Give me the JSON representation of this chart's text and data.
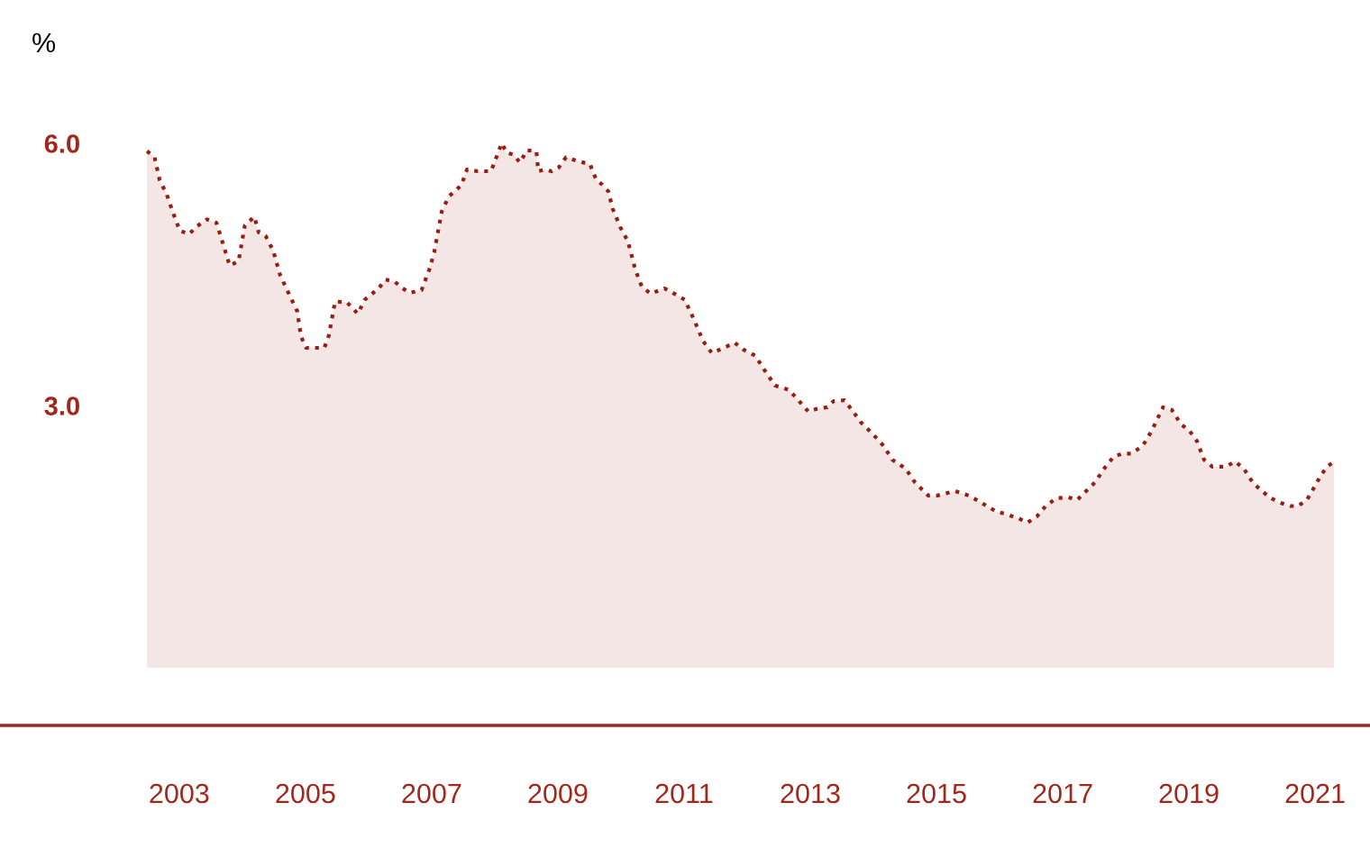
{
  "chart_data": {
    "type": "area",
    "ylabel": "%",
    "color": "#9b1c10",
    "line_style": "dotted",
    "grid": false,
    "x": [
      2002.49,
      2002.61,
      2002.69,
      2002.8,
      2002.91,
      2003.01,
      2003.16,
      2003.26,
      2003.44,
      2003.59,
      2003.69,
      2003.8,
      2003.94,
      2004.04,
      2004.19,
      2004.26,
      2004.37,
      2004.49,
      2004.6,
      2004.73,
      2004.87,
      2004.93,
      2005.01,
      2005.3,
      2005.37,
      2005.47,
      2005.66,
      2005.83,
      2005.94,
      2006.16,
      2006.27,
      2006.41,
      2006.54,
      2006.66,
      2006.84,
      2006.96,
      2007.04,
      2007.16,
      2007.27,
      2007.47,
      2007.56,
      2007.73,
      2007.94,
      2008.01,
      2008.11,
      2008.19,
      2008.3,
      2008.4,
      2008.51,
      2008.66,
      2008.69,
      2008.8,
      2008.9,
      2009.01,
      2009.13,
      2009.3,
      2009.51,
      2009.61,
      2009.7,
      2009.8,
      2009.87,
      2009.99,
      2010.11,
      2010.23,
      2010.33,
      2010.47,
      2010.69,
      2010.87,
      2011.01,
      2011.16,
      2011.3,
      2011.44,
      2011.66,
      2011.8,
      2011.94,
      2012.13,
      2012.27,
      2012.44,
      2012.66,
      2012.8,
      2012.97,
      2013.09,
      2013.27,
      2013.37,
      2013.54,
      2013.66,
      2013.8,
      2013.97,
      2014.16,
      2014.3,
      2014.51,
      2014.66,
      2014.87,
      2015.01,
      2015.23,
      2015.3,
      2015.51,
      2015.66,
      2015.8,
      2015.94,
      2016.09,
      2016.3,
      2016.44,
      2016.59,
      2016.73,
      2016.9,
      2017.09,
      2017.23,
      2017.37,
      2017.51,
      2017.66,
      2017.8,
      2017.94,
      2018.09,
      2018.27,
      2018.41,
      2018.59,
      2018.73,
      2018.87,
      2019.01,
      2019.13,
      2019.24,
      2019.37,
      2019.59,
      2019.73,
      2019.87,
      2020.01,
      2020.16,
      2020.3,
      2020.44,
      2020.61,
      2020.73,
      2020.87,
      2020.99,
      2021.09,
      2021.19,
      2021.3
    ],
    "values": [
      5.91,
      5.84,
      5.58,
      5.42,
      5.19,
      5.0,
      4.96,
      5.04,
      5.13,
      5.09,
      4.86,
      4.6,
      4.65,
      5.06,
      5.16,
      4.98,
      4.94,
      4.77,
      4.49,
      4.29,
      4.08,
      3.79,
      3.66,
      3.66,
      3.8,
      4.19,
      4.18,
      4.05,
      4.21,
      4.34,
      4.44,
      4.42,
      4.34,
      4.29,
      4.32,
      4.55,
      4.75,
      5.22,
      5.39,
      5.52,
      5.7,
      5.68,
      5.68,
      5.81,
      6.0,
      5.89,
      5.87,
      5.78,
      5.92,
      5.91,
      5.68,
      5.7,
      5.68,
      5.72,
      5.84,
      5.8,
      5.76,
      5.58,
      5.53,
      5.45,
      5.25,
      5.04,
      4.88,
      4.55,
      4.36,
      4.28,
      4.34,
      4.27,
      4.21,
      3.98,
      3.74,
      3.6,
      3.67,
      3.72,
      3.64,
      3.57,
      3.41,
      3.23,
      3.18,
      3.07,
      2.93,
      2.96,
      2.98,
      3.05,
      3.06,
      2.95,
      2.81,
      2.69,
      2.54,
      2.38,
      2.28,
      2.12,
      1.97,
      1.97,
      2.01,
      2.02,
      1.97,
      1.91,
      1.85,
      1.79,
      1.76,
      1.71,
      1.66,
      1.73,
      1.85,
      1.94,
      1.95,
      1.92,
      2.02,
      2.12,
      2.28,
      2.41,
      2.45,
      2.45,
      2.54,
      2.71,
      2.98,
      2.95,
      2.79,
      2.71,
      2.59,
      2.38,
      2.3,
      2.3,
      2.36,
      2.28,
      2.12,
      2.02,
      1.94,
      1.89,
      1.85,
      1.85,
      1.92,
      2.07,
      2.2,
      2.3,
      2.36
    ],
    "xlim": [
      2000.16,
      2021.87
    ],
    "xticks": [
      2003,
      2005,
      2007,
      2009,
      2011,
      2013,
      2015,
      2017,
      2019,
      2021
    ],
    "ylim": [
      -0.66,
      6.0
    ],
    "yticks": [
      {
        "value": 3,
        "label": "3.0"
      },
      {
        "value": 6,
        "label": "6.0"
      }
    ]
  }
}
